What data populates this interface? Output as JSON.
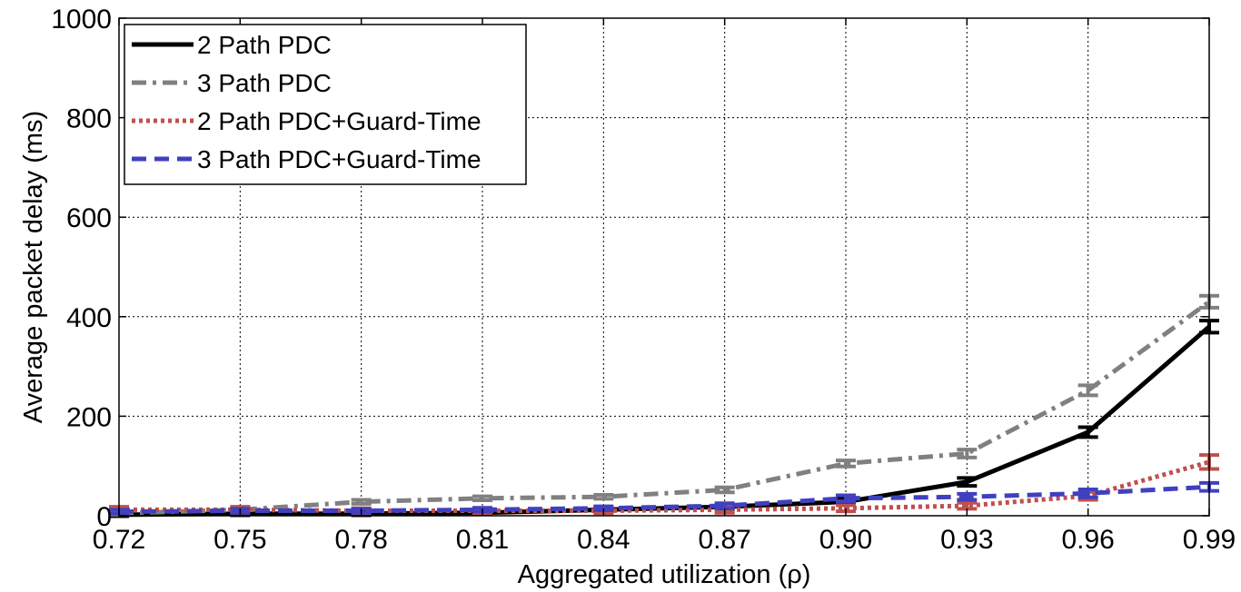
{
  "chart_data": {
    "type": "line",
    "xlabel": "Aggregated utilization (ρ)",
    "ylabel": "Average packet delay (ms)",
    "x": [
      0.72,
      0.75,
      0.78,
      0.81,
      0.84,
      0.87,
      0.9,
      0.93,
      0.96,
      0.99
    ],
    "x_tick_labels": [
      "0.72",
      "0.75",
      "0.78",
      "0.81",
      "0.84",
      "0.87",
      "0.90",
      "0.93",
      "0.96",
      "0.99"
    ],
    "y_ticks": [
      0,
      200,
      400,
      600,
      800,
      1000
    ],
    "y_tick_labels": [
      "0",
      "200",
      "400",
      "600",
      "800",
      "1000"
    ],
    "xlim": [
      0.72,
      0.99
    ],
    "ylim": [
      0,
      1000
    ],
    "grid": true,
    "legend_position": "top-left",
    "series": [
      {
        "name": "2 Path PDC",
        "values": [
          2,
          4,
          4,
          6,
          12,
          18,
          28,
          68,
          168,
          380
        ],
        "error": [
          3,
          3,
          3,
          3,
          4,
          4,
          6,
          8,
          10,
          12
        ],
        "color": "#000000",
        "dash": "solid"
      },
      {
        "name": "3 Path PDC",
        "values": [
          5,
          12,
          28,
          35,
          38,
          52,
          105,
          125,
          252,
          430
        ],
        "error": [
          3,
          3,
          4,
          4,
          4,
          5,
          6,
          8,
          10,
          12
        ],
        "color": "#808080",
        "dash": "dashdot"
      },
      {
        "name": "2 Path PDC+Guard-Time",
        "values": [
          12,
          12,
          10,
          10,
          10,
          12,
          15,
          20,
          40,
          108
        ],
        "error": [
          6,
          6,
          5,
          5,
          5,
          6,
          6,
          6,
          8,
          14
        ],
        "color": "#c0504d",
        "dash": "dotted"
      },
      {
        "name": "3 Path PDC+Guard-Time",
        "values": [
          8,
          10,
          10,
          12,
          15,
          20,
          35,
          38,
          45,
          58
        ],
        "error": [
          4,
          4,
          4,
          4,
          4,
          5,
          6,
          6,
          8,
          8
        ],
        "color": "#4040c0",
        "dash": "dashed"
      }
    ]
  }
}
